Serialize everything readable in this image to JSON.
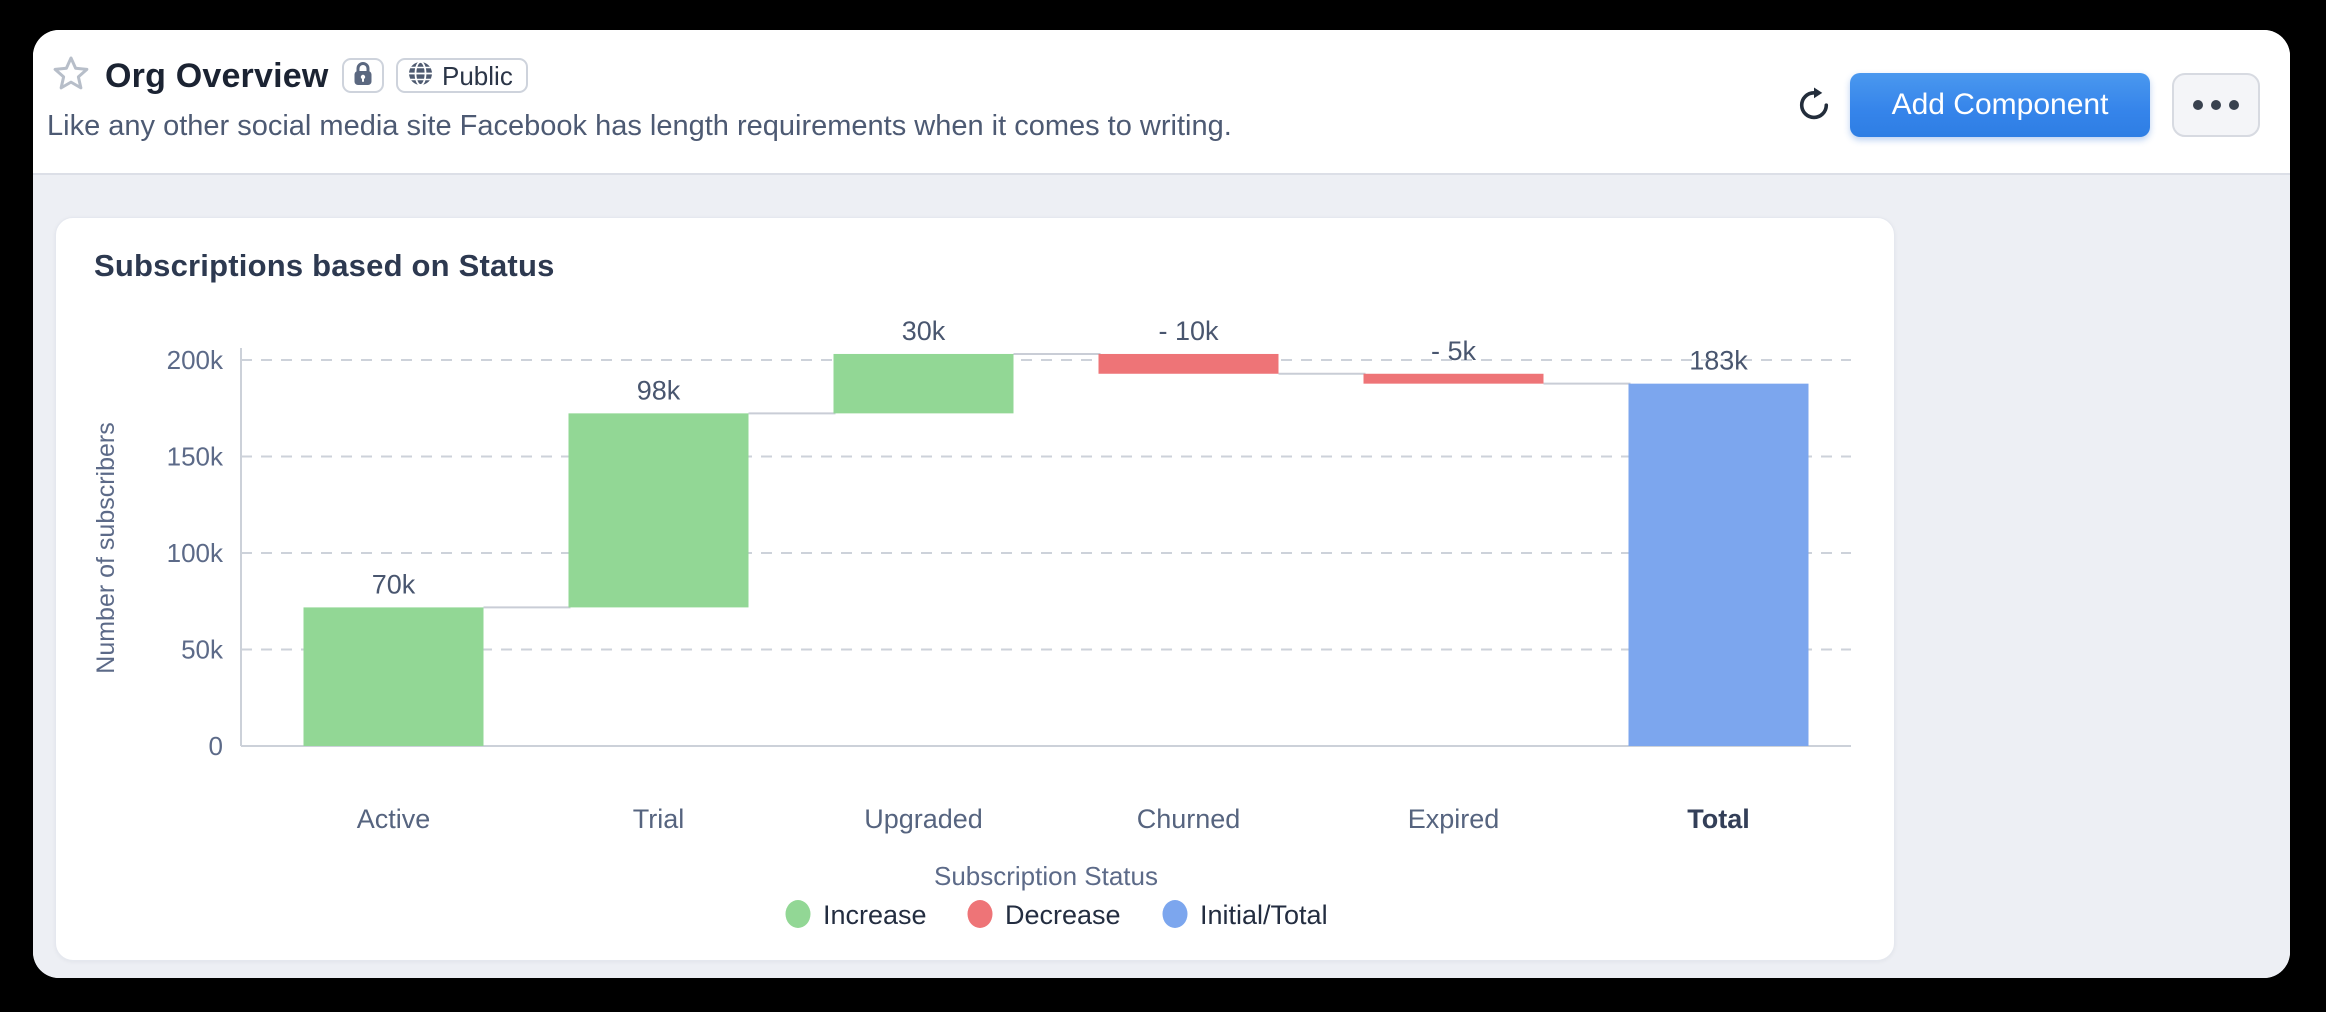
{
  "header": {
    "title": "Org Overview",
    "visibility_label": "Public",
    "subtitle": "Like any other social media site Facebook has length requirements when it comes to writing.",
    "add_component_label": "Add Component",
    "icons": {
      "favorite": "star-icon",
      "lock": "lock-icon",
      "visibility": "globe-icon",
      "refresh": "refresh-icon",
      "more": "ellipsis-icon"
    },
    "accent_color": "#2E7EE6"
  },
  "card": {
    "title": "Subscriptions based on Status"
  },
  "chart_data": {
    "type": "bar",
    "subtype": "waterfall",
    "title": "Subscriptions based on Status",
    "categories": [
      "Active",
      "Trial",
      "Upgraded",
      "Churned",
      "Expired",
      "Total"
    ],
    "values": [
      70,
      98,
      30,
      -10,
      -5,
      183
    ],
    "value_labels": [
      "70k",
      "98k",
      "30k",
      "- 10k",
      "- 5k",
      "183k"
    ],
    "segment_start": [
      0,
      70,
      168,
      198,
      188,
      0
    ],
    "segment_end": [
      70,
      168,
      198,
      188,
      183,
      183
    ],
    "bar_roles": [
      "increase",
      "increase",
      "increase",
      "decrease",
      "decrease",
      "total"
    ],
    "emphasized_category": "Total",
    "xlabel": "Subscription Status",
    "ylabel": "Number of subscribers",
    "y_ticks": [
      {
        "value": 0,
        "label": "0"
      },
      {
        "value": 50,
        "label": "50k"
      },
      {
        "value": 100,
        "label": "100k"
      },
      {
        "value": 150,
        "label": "150k"
      },
      {
        "value": 200,
        "label": "200k"
      }
    ],
    "unit": "k",
    "ylim": [
      0,
      207
    ],
    "grid": "dashed-horizontal",
    "legend_position": "bottom",
    "legend": [
      {
        "label": "Increase",
        "color": "#92D795"
      },
      {
        "label": "Decrease",
        "color": "#EE7477"
      },
      {
        "label": "Initial/Total",
        "color": "#7CA6EE"
      }
    ],
    "colors": {
      "increase": "#92D795",
      "decrease": "#EE7477",
      "total": "#7CA6EE",
      "grid": "#cdd2da",
      "axis": "#ccd1d9",
      "connector": "#c9cdd6",
      "tick_text": "#5c6a88",
      "value_text": "#49566f",
      "category_text": "#56647f",
      "category_text_bold": "#333f58",
      "legend_text": "#232d40"
    }
  }
}
